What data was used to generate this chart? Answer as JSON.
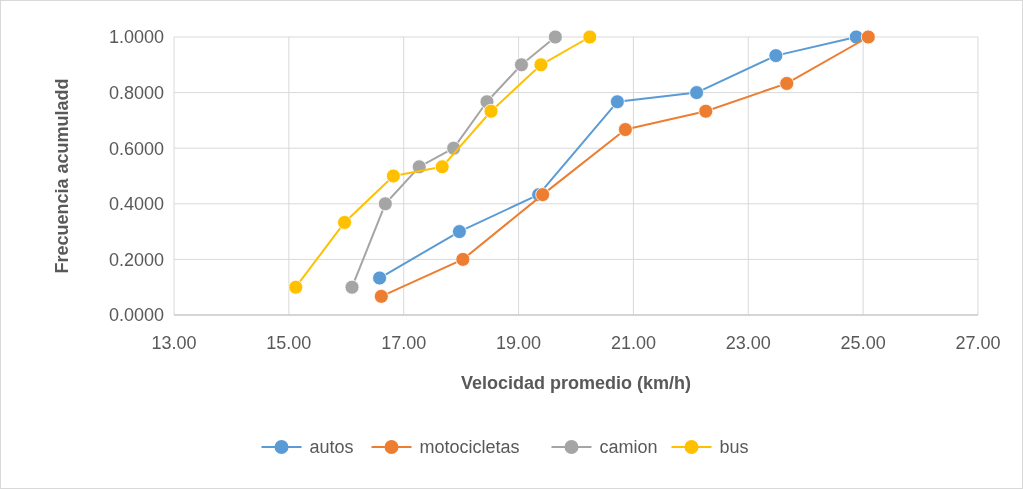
{
  "chart_data": {
    "type": "line",
    "xlabel": "Velocidad promedio (km/h)",
    "ylabel": "Frecuencia acumuladd",
    "series": [
      {
        "name": "autos",
        "color": "#5b9bd5",
        "x": [
          16.58,
          17.97,
          19.35,
          20.72,
          22.1,
          23.48,
          24.88
        ],
        "values": [
          0.133,
          0.3,
          0.433,
          0.767,
          0.8,
          0.933,
          1.0
        ]
      },
      {
        "name": "motocicletas",
        "color": "#ed7d31",
        "x": [
          16.61,
          18.03,
          19.42,
          20.86,
          22.26,
          23.67,
          25.09
        ],
        "values": [
          0.067,
          0.2,
          0.433,
          0.667,
          0.733,
          0.833,
          1.0
        ]
      },
      {
        "name": "camion",
        "color": "#a5a5a5",
        "x": [
          16.1,
          16.68,
          17.27,
          17.87,
          18.45,
          19.05,
          19.64
        ],
        "values": [
          0.1,
          0.4,
          0.533,
          0.6,
          0.767,
          0.9,
          1.0
        ]
      },
      {
        "name": "bus",
        "color": "#ffc000",
        "x": [
          15.12,
          15.97,
          16.82,
          17.67,
          18.52,
          19.39,
          20.24
        ],
        "values": [
          0.1,
          0.333,
          0.5,
          0.533,
          0.733,
          0.9,
          1.0
        ]
      }
    ],
    "xlim": [
      13,
      27
    ],
    "xticks": [
      {
        "value": 13,
        "label": "13.00"
      },
      {
        "value": 15,
        "label": "15.00"
      },
      {
        "value": 17,
        "label": "17.00"
      },
      {
        "value": 19,
        "label": "19.00"
      },
      {
        "value": 21,
        "label": "21.00"
      },
      {
        "value": 23,
        "label": "23.00"
      },
      {
        "value": 25,
        "label": "25.00"
      },
      {
        "value": 27,
        "label": "27.00"
      }
    ],
    "ylim": [
      0,
      1
    ],
    "yticks": [
      {
        "value": 0,
        "label": "0.0000"
      },
      {
        "value": 0.2,
        "label": "0.2000"
      },
      {
        "value": 0.4,
        "label": "0.4000"
      },
      {
        "value": 0.6,
        "label": "0.6000"
      },
      {
        "value": 0.8,
        "label": "0.8000"
      },
      {
        "value": 1,
        "label": "1.0000"
      }
    ],
    "grid": true,
    "legend": "bottom",
    "marker": "circle",
    "line_style": "solid"
  }
}
